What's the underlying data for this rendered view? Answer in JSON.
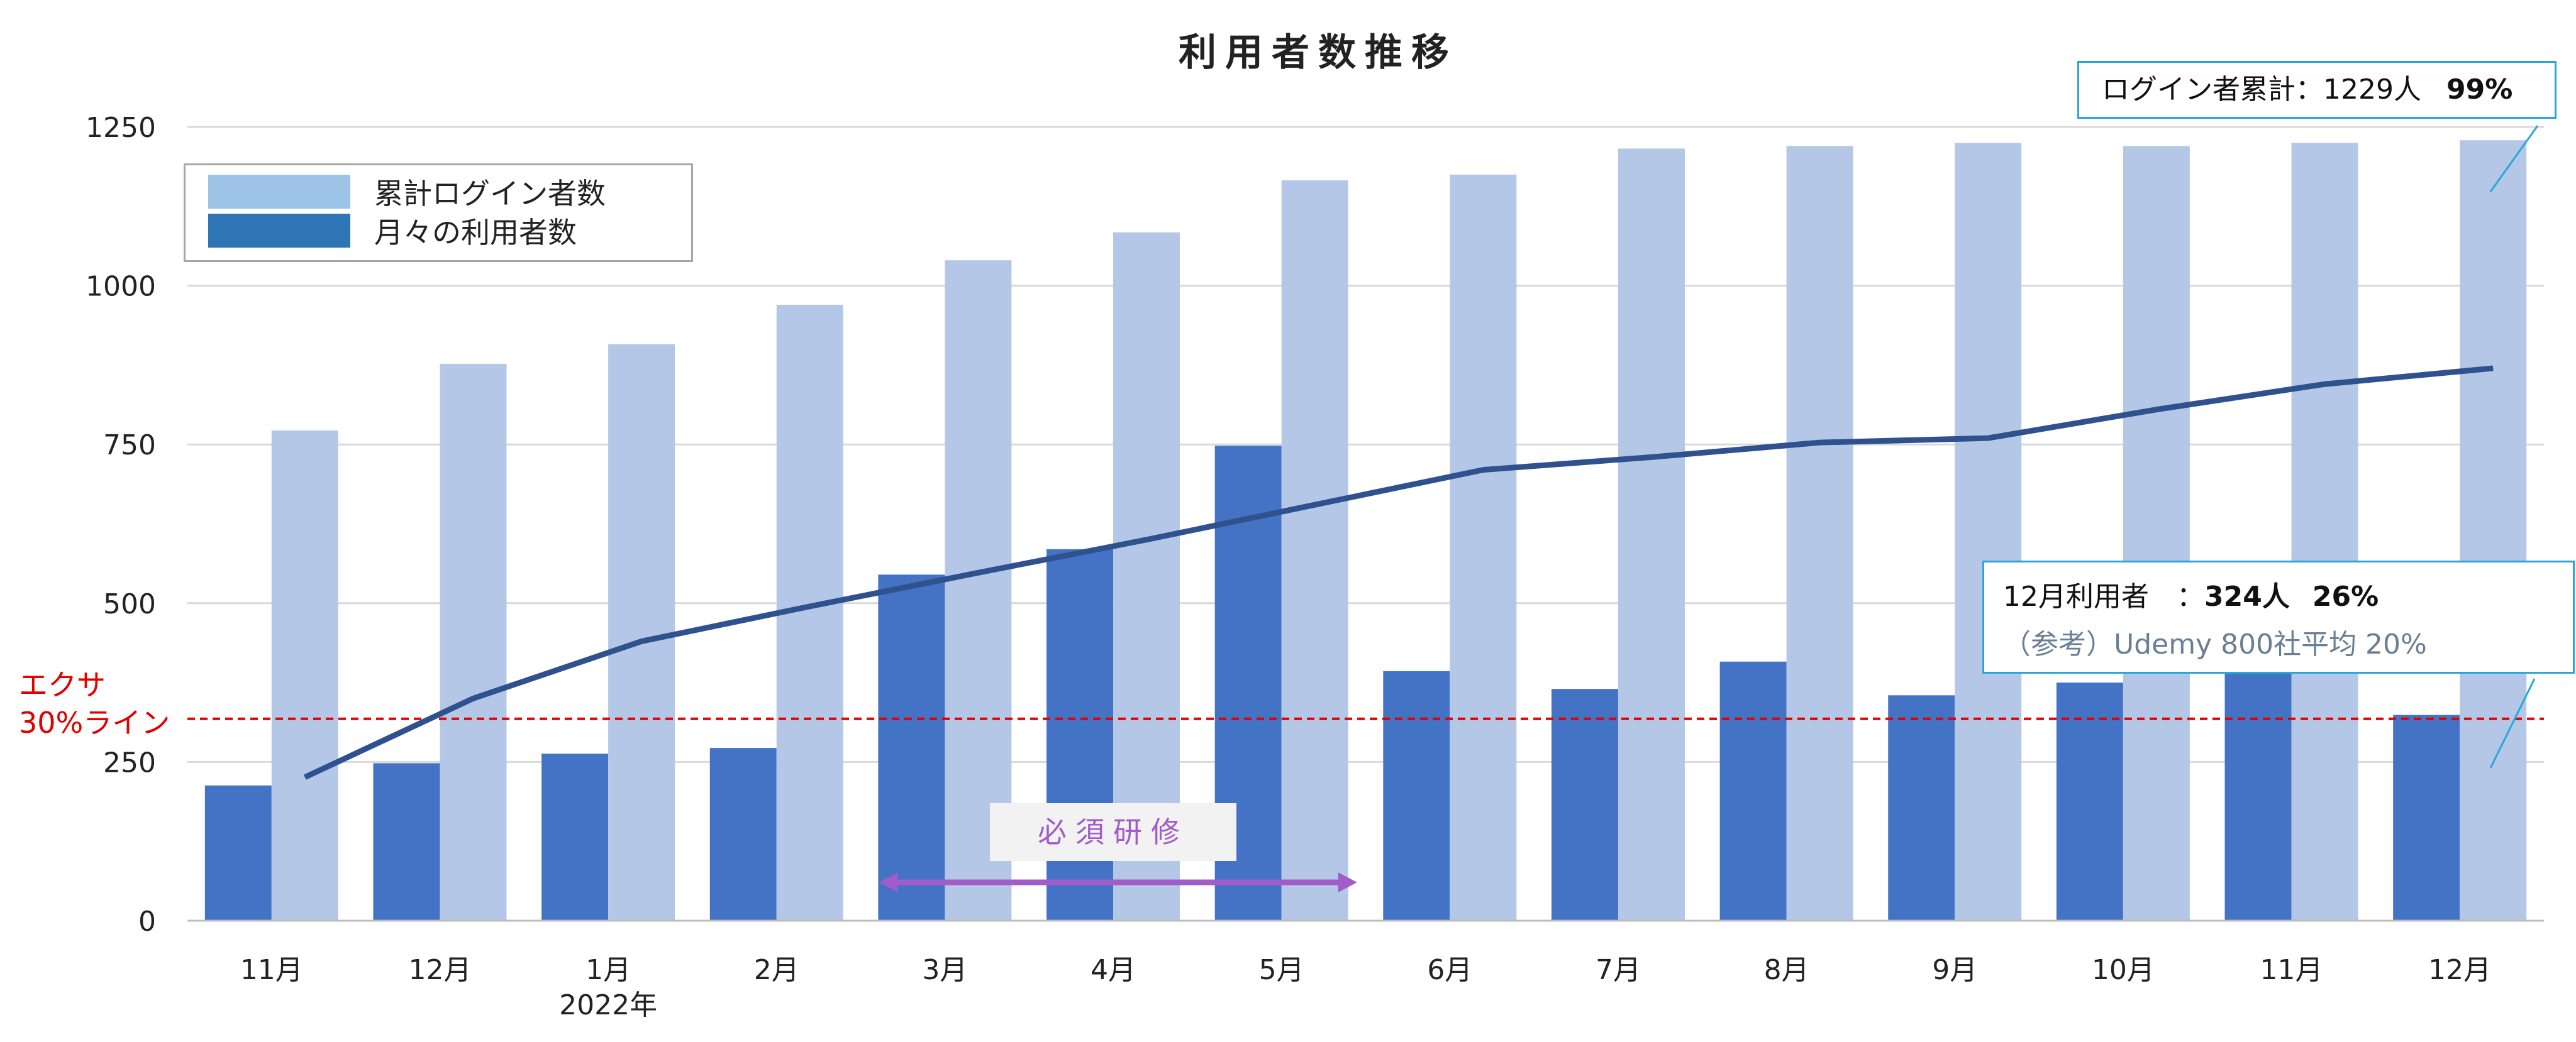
{
  "chart_data": {
    "type": "bar",
    "title": "利用者数推移",
    "categories": [
      "11月",
      "12月",
      "1月",
      "2月",
      "3月",
      "4月",
      "5月",
      "6月",
      "7月",
      "8月",
      "9月",
      "10月",
      "11月",
      "12月"
    ],
    "category_sublabels": [
      "",
      "",
      "2022年",
      "",
      "",
      "",
      "",
      "",
      "",
      "",
      "",
      "",
      "",
      ""
    ],
    "ylim": [
      0,
      1250
    ],
    "yticks": [
      0,
      250,
      500,
      750,
      1000,
      1250
    ],
    "grid": true,
    "series": [
      {
        "name": "月々の利用者数",
        "kind": "bar",
        "color": "#4472c4",
        "values": [
          213,
          248,
          263,
          272,
          545,
          585,
          748,
          393,
          365,
          408,
          355,
          375,
          405,
          324
        ]
      },
      {
        "name": "累計ログイン者数",
        "kind": "bar",
        "color": "#b4c7e7",
        "values": [
          772,
          877,
          908,
          970,
          1040,
          1084,
          1166,
          1175,
          1216,
          1220,
          1225,
          1220,
          1225,
          1229
        ]
      },
      {
        "kind": "line",
        "color": "#2f528f",
        "values": [
          226,
          350,
          440,
          495,
          548,
          600,
          655,
          710,
          730,
          753,
          760,
          805,
          845,
          870
        ]
      }
    ],
    "legend": {
      "position": "top-left",
      "items": [
        {
          "label": "累計ログイン者数",
          "color": "#9dc3e6"
        },
        {
          "label": "月々の利用者数",
          "color": "#2e75b6"
        }
      ]
    },
    "reference_line": {
      "value": 318,
      "color": "#e00000",
      "label_line1": "エクサ",
      "label_line2": "30%ライン"
    },
    "training_period": {
      "label": "必須研修",
      "from_category_index": 4,
      "to_category_index": 6,
      "color": "#a05cc8"
    },
    "callouts": {
      "total": {
        "text": "ログイン者累計：1229人",
        "pct": "99%"
      },
      "december": {
        "prefix": "12月利用者　：",
        "count": "324人",
        "pct": "26%",
        "note": "（参考）Udemy 800社平均 20%"
      }
    }
  }
}
